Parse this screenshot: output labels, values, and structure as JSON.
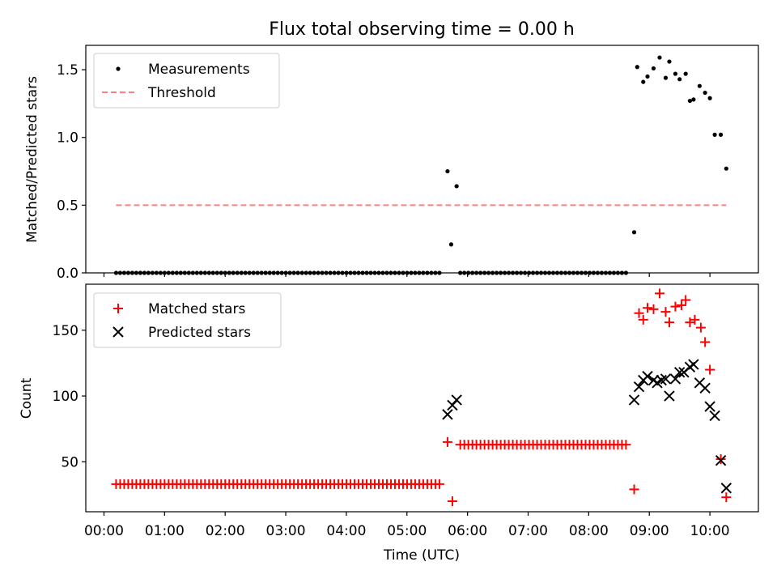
{
  "chart_data": {
    "type": "scatter",
    "title": "Flux total observing time = 0.00 h",
    "xlabel": "Time (UTC)",
    "x_ticks": [
      "00:00",
      "01:00",
      "02:00",
      "03:00",
      "04:00",
      "05:00",
      "06:00",
      "07:00",
      "08:00",
      "09:00",
      "10:00"
    ],
    "x_range_hours": [
      -0.3,
      10.8
    ],
    "panels": [
      {
        "ylabel": "Matched/Predicted stars",
        "ylim": [
          0,
          1.68
        ],
        "y_ticks": [
          "0.0",
          "0.5",
          "1.0",
          "1.5"
        ],
        "y_tick_values": [
          0,
          0.5,
          1.0,
          1.5
        ],
        "legend": {
          "position": "upper-left",
          "entries": [
            "Measurements",
            "Threshold"
          ]
        },
        "series": [
          {
            "name": "Measurements",
            "marker": "dot",
            "color": "#000000",
            "zero_run": [
              {
                "start": 0.2,
                "end": 5.6,
                "step": 0.0667
              },
              {
                "start": 5.88,
                "end": 8.67,
                "step": 0.0667
              }
            ],
            "x": [
              5.67,
              5.73,
              5.82,
              8.75,
              8.8,
              8.9,
              8.97,
              9.07,
              9.17,
              9.27,
              9.33,
              9.43,
              9.5,
              9.6,
              9.67,
              9.73,
              9.83,
              9.92,
              10.0,
              10.08,
              10.18,
              10.27
            ],
            "y": [
              0.75,
              0.21,
              0.64,
              0.3,
              1.52,
              1.41,
              1.45,
              1.51,
              1.59,
              1.44,
              1.56,
              1.47,
              1.43,
              1.47,
              1.27,
              1.28,
              1.38,
              1.33,
              1.29,
              1.02,
              1.02,
              0.77
            ]
          },
          {
            "name": "Threshold",
            "style": "dashed",
            "color": "#ff7f7f",
            "x": [
              0.2,
              10.27
            ],
            "y": [
              0.5,
              0.5
            ]
          }
        ]
      },
      {
        "ylabel": "Count",
        "ylim": [
          12,
          185
        ],
        "y_ticks": [
          "50",
          "100",
          "150"
        ],
        "y_tick_values": [
          50,
          100,
          150
        ],
        "legend": {
          "position": "upper-left",
          "entries": [
            "Matched stars",
            "Predicted stars"
          ]
        },
        "series": [
          {
            "name": "Matched stars",
            "marker": "plus",
            "color": "#ff0000",
            "runs": [
              {
                "start": 0.2,
                "end": 5.6,
                "step": 0.0667,
                "value": 33
              },
              {
                "start": 5.88,
                "end": 8.67,
                "step": 0.0667,
                "value": 63
              }
            ],
            "x": [
              5.67,
              5.75,
              8.75,
              8.83,
              8.9,
              8.97,
              9.07,
              9.17,
              9.27,
              9.33,
              9.43,
              9.53,
              9.6,
              9.67,
              9.75,
              9.85,
              9.92,
              10.0,
              10.18,
              10.27
            ],
            "y": [
              65,
              20,
              29,
              163,
              158,
              167,
              166,
              178,
              164,
              156,
              168,
              169,
              173,
              156,
              158,
              152,
              141,
              120,
              52,
              23
            ]
          },
          {
            "name": "Predicted stars",
            "marker": "x",
            "color": "#000000",
            "x": [
              5.67,
              5.75,
              5.82,
              8.75,
              8.83,
              8.9,
              8.97,
              9.07,
              9.13,
              9.2,
              9.27,
              9.33,
              9.43,
              9.5,
              9.57,
              9.67,
              9.73,
              9.83,
              9.92,
              10.0,
              10.08,
              10.18,
              10.27
            ],
            "y": [
              86,
              93,
              97,
              97,
              107,
              112,
              115,
              112,
              110,
              112,
              113,
              100,
              113,
              118,
              118,
              122,
              124,
              110,
              106,
              92,
              85,
              51,
              30
            ]
          }
        ]
      }
    ]
  }
}
